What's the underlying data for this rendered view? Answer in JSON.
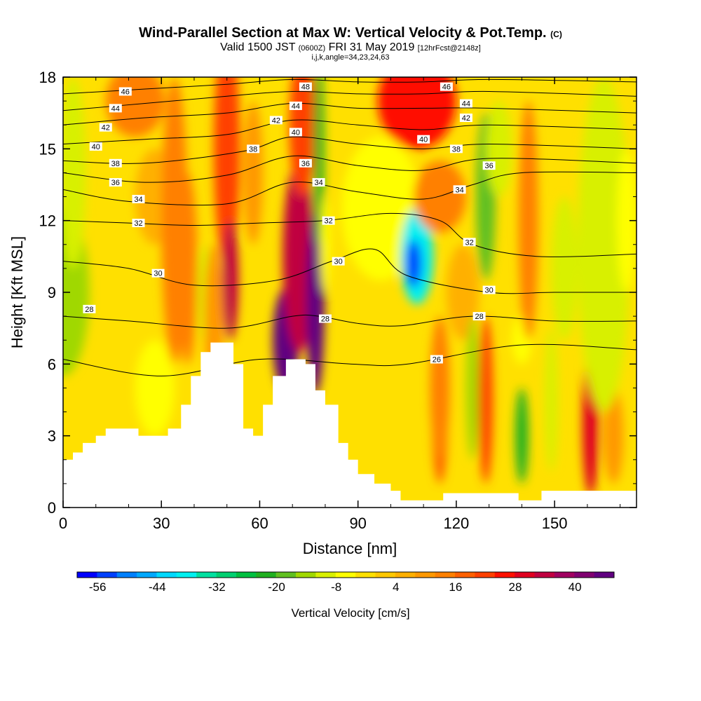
{
  "title": {
    "main": "Wind-Parallel Section at Max W: Vertical Velocity & Pot.Temp.",
    "main_suffix": "(C)",
    "valid_a": "Valid 1500 JST",
    "valid_b": "(0600Z)",
    "valid_c": "FRI 31 May 2019",
    "valid_d": "[12hrFcst@2148z]",
    "indices": "i,j,k,angle=34,23,24,63"
  },
  "chart_data": {
    "type": "heatmap",
    "xlabel": "Distance [nm]",
    "ylabel": "Height [Kft MSL]",
    "xlim": [
      0,
      175
    ],
    "ylim": [
      0,
      18
    ],
    "x_ticks": [
      "0",
      "30",
      "60",
      "90",
      "120",
      "150"
    ],
    "x_tick_values": [
      0,
      30,
      60,
      90,
      120,
      150
    ],
    "y_ticks": [
      "0",
      "3",
      "6",
      "9",
      "12",
      "15",
      "18"
    ],
    "y_tick_values": [
      0,
      3,
      6,
      9,
      12,
      15,
      18
    ],
    "colorbar": {
      "label": "Vertical Velocity [cm/s]",
      "tick_labels": [
        "-56",
        "-44",
        "-32",
        "-20",
        "-8",
        "4",
        "16",
        "28",
        "40"
      ],
      "colors": [
        "#0000ff",
        "#0040ff",
        "#0080ff",
        "#00a8ff",
        "#00d8ff",
        "#00f0f0",
        "#00e0a0",
        "#00d070",
        "#00c040",
        "#20b020",
        "#60c020",
        "#a0d800",
        "#d8f000",
        "#ffff00",
        "#ffe000",
        "#ffc800",
        "#ffb000",
        "#ff9800",
        "#ff8000",
        "#ff6000",
        "#ff4000",
        "#ff1000",
        "#e00020",
        "#c00040",
        "#a00060",
        "#800070",
        "#600080"
      ]
    },
    "terrain_profile": [
      [
        0,
        2
      ],
      [
        3,
        2
      ],
      [
        3,
        2.3
      ],
      [
        6,
        2.3
      ],
      [
        6,
        2.7
      ],
      [
        10,
        2.7
      ],
      [
        10,
        3
      ],
      [
        13,
        3
      ],
      [
        13,
        3.3
      ],
      [
        23,
        3.3
      ],
      [
        23,
        3
      ],
      [
        32,
        3
      ],
      [
        32,
        3.3
      ],
      [
        36,
        3.3
      ],
      [
        36,
        4.3
      ],
      [
        39,
        4.3
      ],
      [
        39,
        5.5
      ],
      [
        42,
        5.5
      ],
      [
        42,
        6.5
      ],
      [
        45,
        6.5
      ],
      [
        45,
        6.9
      ],
      [
        52,
        6.9
      ],
      [
        52,
        6
      ],
      [
        55,
        6
      ],
      [
        55,
        3.3
      ],
      [
        58,
        3.3
      ],
      [
        58,
        3
      ],
      [
        61,
        3
      ],
      [
        61,
        4.3
      ],
      [
        64,
        4.3
      ],
      [
        64,
        5.5
      ],
      [
        68,
        5.5
      ],
      [
        68,
        6.2
      ],
      [
        74,
        6.2
      ],
      [
        74,
        6
      ],
      [
        77,
        6
      ],
      [
        77,
        4.9
      ],
      [
        80,
        4.9
      ],
      [
        80,
        4.3
      ],
      [
        84,
        4.3
      ],
      [
        84,
        2.7
      ],
      [
        87,
        2.7
      ],
      [
        87,
        2
      ],
      [
        90,
        2
      ],
      [
        90,
        1.4
      ],
      [
        95,
        1.4
      ],
      [
        95,
        1
      ],
      [
        100,
        1
      ],
      [
        100,
        0.7
      ],
      [
        103,
        0.7
      ],
      [
        103,
        0.3
      ],
      [
        116,
        0.3
      ],
      [
        116,
        0.6
      ],
      [
        139,
        0.6
      ],
      [
        139,
        0.3
      ],
      [
        146,
        0.3
      ],
      [
        146,
        0.7
      ],
      [
        175,
        0.7
      ],
      [
        175,
        0
      ],
      [
        0,
        0
      ]
    ],
    "w_cells": [
      {
        "x": 0,
        "y": 9,
        "w": -14,
        "rx": 8,
        "ry": 3.5
      },
      {
        "x": 3,
        "y": 14,
        "w": -10,
        "rx": 4,
        "ry": 4
      },
      {
        "x": 22,
        "y": 17,
        "w": 14,
        "rx": 9,
        "ry": 1.5
      },
      {
        "x": 28,
        "y": 13,
        "w": 8,
        "rx": 6,
        "ry": 2
      },
      {
        "x": 28,
        "y": 5,
        "w": -6,
        "rx": 6,
        "ry": 2
      },
      {
        "x": 34,
        "y": 12,
        "w": 14,
        "rx": 4,
        "ry": 6
      },
      {
        "x": 38,
        "y": 10,
        "w": 16,
        "rx": 3,
        "ry": 4
      },
      {
        "x": 43,
        "y": 9,
        "w": -10,
        "rx": 2,
        "ry": 2
      },
      {
        "x": 46,
        "y": 8,
        "w": 12,
        "rx": 3,
        "ry": 3
      },
      {
        "x": 50,
        "y": 15,
        "w": 24,
        "rx": 4,
        "ry": 5
      },
      {
        "x": 51,
        "y": 9.5,
        "w": 34,
        "rx": 2.5,
        "ry": 2.5
      },
      {
        "x": 58,
        "y": 14,
        "w": 12,
        "rx": 3,
        "ry": 3
      },
      {
        "x": 68,
        "y": 7,
        "w": 48,
        "rx": 4,
        "ry": 2.2
      },
      {
        "x": 72,
        "y": 10.5,
        "w": 34,
        "rx": 5,
        "ry": 4
      },
      {
        "x": 77,
        "y": 8.5,
        "w": 50,
        "rx": 2.8,
        "ry": 3.8
      },
      {
        "x": 73,
        "y": 16,
        "w": 24,
        "rx": 4,
        "ry": 3
      },
      {
        "x": 78,
        "y": 15,
        "w": -22,
        "rx": 1.6,
        "ry": 4
      },
      {
        "x": 80,
        "y": 11,
        "w": -6,
        "rx": 1.5,
        "ry": 2
      },
      {
        "x": 97,
        "y": 12.5,
        "w": -4,
        "rx": 12,
        "ry": 3
      },
      {
        "x": 108,
        "y": 10.5,
        "w": -38,
        "rx": 5,
        "ry": 2
      },
      {
        "x": 107,
        "y": 10.2,
        "w": -54,
        "rx": 2.5,
        "ry": 1
      },
      {
        "x": 108,
        "y": 17,
        "w": 26,
        "rx": 12,
        "ry": 2
      },
      {
        "x": 115,
        "y": 13,
        "w": 14,
        "rx": 8,
        "ry": 1.5
      },
      {
        "x": 122,
        "y": 9,
        "w": 8,
        "rx": 5,
        "ry": 2
      },
      {
        "x": 129,
        "y": 13,
        "w": -16,
        "rx": 3,
        "ry": 3.5
      },
      {
        "x": 133,
        "y": 15,
        "w": -8,
        "rx": 4,
        "ry": 2
      },
      {
        "x": 125,
        "y": 5,
        "w": -12,
        "rx": 2,
        "ry": 3
      },
      {
        "x": 115,
        "y": 4,
        "w": 20,
        "rx": 2.5,
        "ry": 3
      },
      {
        "x": 115,
        "y": 5,
        "w": 14,
        "rx": 3,
        "ry": 3
      },
      {
        "x": 129,
        "y": 4.5,
        "w": 22,
        "rx": 2.2,
        "ry": 3.5
      },
      {
        "x": 140,
        "y": 3,
        "w": -22,
        "rx": 2,
        "ry": 2
      },
      {
        "x": 140,
        "y": 7,
        "w": -4,
        "rx": 3,
        "ry": 1
      },
      {
        "x": 149,
        "y": 4.5,
        "w": -8,
        "rx": 2,
        "ry": 3
      },
      {
        "x": 153,
        "y": 10,
        "w": -10,
        "rx": 4,
        "ry": 3
      },
      {
        "x": 142,
        "y": 12,
        "w": 14,
        "rx": 3,
        "ry": 5
      },
      {
        "x": 161,
        "y": 3.5,
        "w": 30,
        "rx": 2.5,
        "ry": 3
      },
      {
        "x": 168,
        "y": 3,
        "w": 12,
        "rx": 3,
        "ry": 2
      },
      {
        "x": 165,
        "y": 11,
        "w": -10,
        "rx": 8,
        "ry": 7
      },
      {
        "x": 172,
        "y": 12,
        "w": -6,
        "rx": 3,
        "ry": 3
      }
    ],
    "theta_contours": [
      {
        "value": 26,
        "points": [
          [
            0,
            6.2
          ],
          [
            30,
            5.5
          ],
          [
            60,
            6.2
          ],
          [
            88,
            6
          ],
          [
            105,
            6
          ],
          [
            140,
            6.8
          ],
          [
            175,
            6.6
          ]
        ]
      },
      {
        "value": 28,
        "points": [
          [
            0,
            8
          ],
          [
            20,
            7.8
          ],
          [
            50,
            7.5
          ],
          [
            70,
            8
          ],
          [
            78,
            8
          ],
          [
            90,
            7.7
          ],
          [
            103,
            7.6
          ],
          [
            125,
            8
          ],
          [
            150,
            7.8
          ],
          [
            175,
            7.8
          ]
        ]
      },
      {
        "value": 30,
        "points": [
          [
            0,
            10.3
          ],
          [
            20,
            10
          ],
          [
            40,
            9.3
          ],
          [
            65,
            9.5
          ],
          [
            82,
            10.3
          ],
          [
            95,
            10.8
          ],
          [
            105,
            9.7
          ],
          [
            130,
            9
          ],
          [
            150,
            9
          ],
          [
            175,
            9
          ]
        ]
      },
      {
        "value": 32,
        "points": [
          [
            0,
            12
          ],
          [
            20,
            11.9
          ],
          [
            40,
            11.8
          ],
          [
            60,
            11.9
          ],
          [
            80,
            12
          ],
          [
            100,
            12.3
          ],
          [
            115,
            12
          ],
          [
            125,
            11
          ],
          [
            145,
            10.5
          ],
          [
            175,
            10.6
          ]
        ]
      },
      {
        "value": 34,
        "points": [
          [
            0,
            13.3
          ],
          [
            20,
            12.8
          ],
          [
            50,
            12.7
          ],
          [
            70,
            13.6
          ],
          [
            90,
            13.2
          ],
          [
            110,
            12.9
          ],
          [
            125,
            13.5
          ],
          [
            140,
            14
          ],
          [
            175,
            14
          ]
        ]
      },
      {
        "value": 36,
        "points": [
          [
            0,
            14
          ],
          [
            25,
            13.6
          ],
          [
            50,
            13.9
          ],
          [
            70,
            14.7
          ],
          [
            90,
            14.3
          ],
          [
            110,
            14.1
          ],
          [
            130,
            14.6
          ],
          [
            175,
            14.4
          ]
        ]
      },
      {
        "value": 38,
        "points": [
          [
            0,
            14.5
          ],
          [
            25,
            14.4
          ],
          [
            55,
            14.9
          ],
          [
            70,
            15.5
          ],
          [
            90,
            15.2
          ],
          [
            110,
            15
          ],
          [
            130,
            15.2
          ],
          [
            175,
            15
          ]
        ]
      },
      {
        "value": 40,
        "points": [
          [
            0,
            15.2
          ],
          [
            25,
            15.4
          ],
          [
            50,
            15.6
          ],
          [
            70,
            16.2
          ],
          [
            90,
            16
          ],
          [
            110,
            15.8
          ],
          [
            130,
            16
          ],
          [
            175,
            15.8
          ]
        ]
      },
      {
        "value": 42,
        "points": [
          [
            0,
            16
          ],
          [
            25,
            16.3
          ],
          [
            50,
            16.5
          ],
          [
            70,
            16.9
          ],
          [
            90,
            16.7
          ],
          [
            110,
            16.7
          ],
          [
            130,
            16.7
          ],
          [
            175,
            16.5
          ]
        ]
      },
      {
        "value": 44,
        "points": [
          [
            0,
            16.6
          ],
          [
            25,
            16.9
          ],
          [
            50,
            17.2
          ],
          [
            70,
            17.4
          ],
          [
            90,
            17.3
          ],
          [
            110,
            17.3
          ],
          [
            130,
            17.4
          ],
          [
            175,
            17.2
          ]
        ]
      },
      {
        "value": 46,
        "points": [
          [
            0,
            17.3
          ],
          [
            25,
            17.5
          ],
          [
            50,
            17.7
          ],
          [
            70,
            17.9
          ],
          [
            90,
            17.8
          ],
          [
            110,
            17.8
          ],
          [
            130,
            17.9
          ],
          [
            175,
            17.8
          ]
        ]
      }
    ],
    "contour_labels": [
      {
        "text": "46",
        "x": 19,
        "y": 17.4
      },
      {
        "text": "44",
        "x": 16,
        "y": 16.7
      },
      {
        "text": "42",
        "x": 13,
        "y": 15.9
      },
      {
        "text": "40",
        "x": 10,
        "y": 15.1
      },
      {
        "text": "38",
        "x": 16,
        "y": 14.4
      },
      {
        "text": "36",
        "x": 16,
        "y": 13.6
      },
      {
        "text": "34",
        "x": 23,
        "y": 12.9
      },
      {
        "text": "32",
        "x": 23,
        "y": 11.9
      },
      {
        "text": "30",
        "x": 29,
        "y": 9.8
      },
      {
        "text": "28",
        "x": 8,
        "y": 8.3
      },
      {
        "text": "48",
        "x": 74,
        "y": 17.6
      },
      {
        "text": "44",
        "x": 71,
        "y": 16.8
      },
      {
        "text": "42",
        "x": 65,
        "y": 16.2
      },
      {
        "text": "40",
        "x": 71,
        "y": 15.7
      },
      {
        "text": "38",
        "x": 58,
        "y": 15
      },
      {
        "text": "36",
        "x": 74,
        "y": 14.4
      },
      {
        "text": "34",
        "x": 78,
        "y": 13.6
      },
      {
        "text": "32",
        "x": 81,
        "y": 12
      },
      {
        "text": "30",
        "x": 84,
        "y": 10.3
      },
      {
        "text": "28",
        "x": 80,
        "y": 7.9
      },
      {
        "text": "46",
        "x": 117,
        "y": 17.6
      },
      {
        "text": "44",
        "x": 123,
        "y": 16.9
      },
      {
        "text": "42",
        "x": 123,
        "y": 16.3
      },
      {
        "text": "40",
        "x": 110,
        "y": 15.4
      },
      {
        "text": "38",
        "x": 120,
        "y": 15
      },
      {
        "text": "36",
        "x": 130,
        "y": 14.3
      },
      {
        "text": "34",
        "x": 121,
        "y": 13.3
      },
      {
        "text": "32",
        "x": 124,
        "y": 11.1
      },
      {
        "text": "30",
        "x": 130,
        "y": 9.1
      },
      {
        "text": "28",
        "x": 127,
        "y": 8
      },
      {
        "text": "26",
        "x": 114,
        "y": 6.2
      }
    ],
    "grid": false,
    "legend": "bottom-colorbar"
  }
}
